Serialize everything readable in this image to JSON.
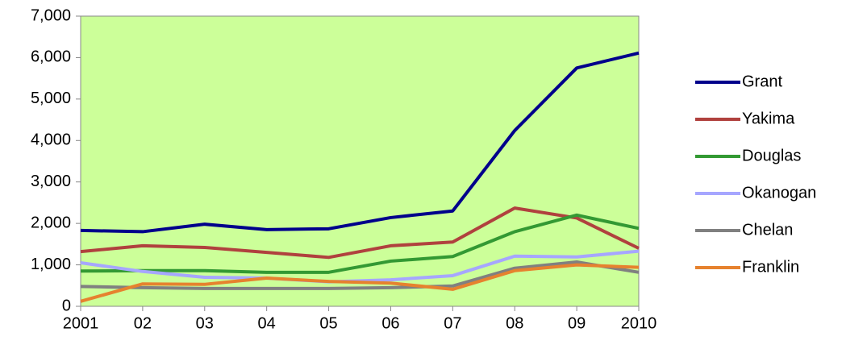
{
  "chart_data": {
    "type": "line",
    "categories": [
      "2001",
      "02",
      "03",
      "04",
      "05",
      "06",
      "07",
      "08",
      "09",
      "2010"
    ],
    "series": [
      {
        "name": "Grant",
        "color": "#00008b",
        "values": [
          1830,
          1800,
          1980,
          1850,
          1870,
          2140,
          2300,
          4240,
          5750,
          6110
        ]
      },
      {
        "name": "Yakima",
        "color": "#b0413e",
        "values": [
          1320,
          1460,
          1420,
          1300,
          1180,
          1460,
          1550,
          2370,
          2130,
          1400
        ]
      },
      {
        "name": "Douglas",
        "color": "#339933",
        "values": [
          850,
          860,
          860,
          820,
          820,
          1090,
          1200,
          1800,
          2200,
          1880
        ]
      },
      {
        "name": "Okanogan",
        "color": "#a6a6ff",
        "values": [
          1050,
          840,
          700,
          680,
          590,
          640,
          740,
          1210,
          1190,
          1330
        ]
      },
      {
        "name": "Chelan",
        "color": "#808080",
        "values": [
          480,
          450,
          430,
          430,
          430,
          450,
          490,
          920,
          1070,
          820
        ]
      },
      {
        "name": "Franklin",
        "color": "#e6822e",
        "values": [
          120,
          540,
          530,
          680,
          600,
          560,
          410,
          860,
          1000,
          940
        ]
      }
    ],
    "ylim": [
      0,
      7000
    ],
    "yticks": [
      0,
      {
        "value": 1000,
        "label": "1,000"
      },
      {
        "value": 2000,
        "label": "2,000"
      },
      {
        "value": 3000,
        "label": "3,000"
      },
      {
        "value": 4000,
        "label": "4,000"
      },
      {
        "value": 5000,
        "label": "5,000"
      },
      {
        "value": 6000,
        "label": "6,000"
      },
      {
        "value": 7000,
        "label": "7,000"
      }
    ],
    "background": "#ccff99"
  }
}
